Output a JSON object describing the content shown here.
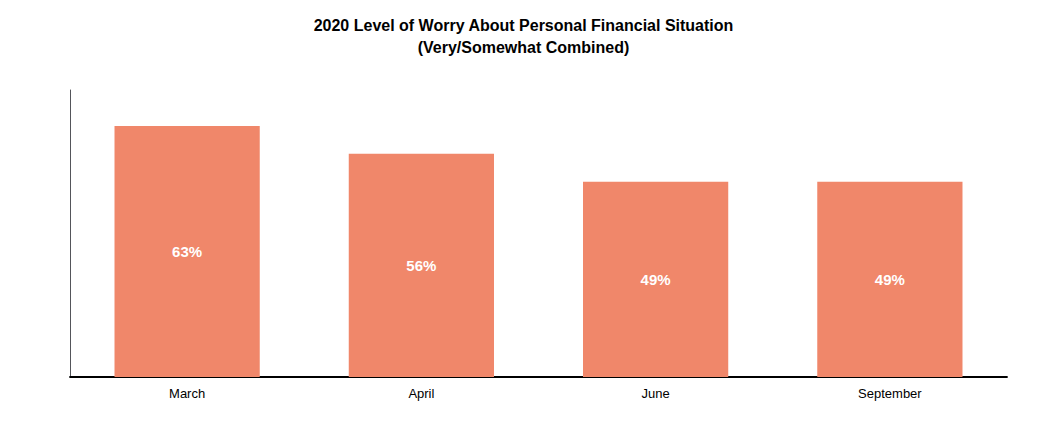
{
  "chart_data": {
    "type": "bar",
    "title": "2020 Level of Worry About Personal Financial Situation",
    "subtitle": "(Very/Somewhat Combined)",
    "categories": [
      "March",
      "April",
      "June",
      "September"
    ],
    "values": [
      63,
      56,
      49,
      49
    ],
    "value_labels": [
      "63%",
      "56%",
      "49%",
      "49%"
    ],
    "data_labels": true,
    "color": "#F0876A",
    "ylim": [
      0,
      72
    ],
    "tick_labels": "x",
    "grid": false
  }
}
